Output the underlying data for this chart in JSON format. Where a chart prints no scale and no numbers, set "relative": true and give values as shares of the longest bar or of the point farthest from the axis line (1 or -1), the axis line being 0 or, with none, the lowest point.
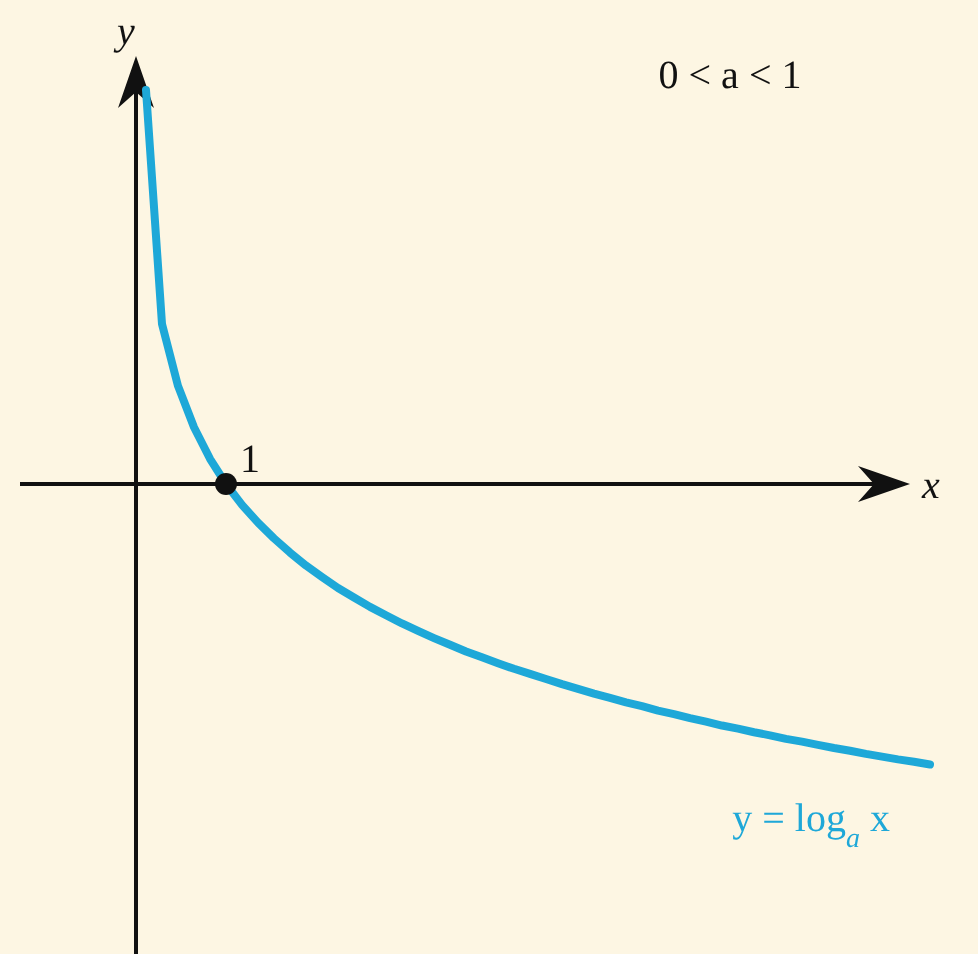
{
  "chart_data": {
    "type": "line",
    "relative": true,
    "xlabel": "x",
    "ylabel": "y",
    "annotations": [
      "0 < a < 1",
      "1"
    ],
    "categories": [
      null,
      null,
      null,
      null,
      null,
      null,
      null,
      null,
      null,
      null,
      null,
      null,
      null,
      null,
      null,
      null,
      null,
      null,
      null,
      null,
      null,
      null,
      null,
      null,
      null,
      null,
      null,
      null,
      null,
      null,
      null,
      null,
      null,
      null,
      null,
      null,
      null,
      null,
      null,
      null,
      null,
      null,
      null,
      null,
      null,
      null,
      null,
      null,
      null,
      null
    ],
    "series": [
      {
        "name": "y = log$_{a}$ x",
        "color": "#1ea8d8",
        "values": [
          1.0,
          0.406,
          0.249,
          0.144,
          0.064,
          0,
          -0.053,
          -0.098,
          -0.138,
          -0.174,
          -0.207,
          -0.236,
          -0.264,
          -0.288,
          -0.312,
          -0.333,
          -0.354,
          -0.373,
          -0.391,
          -0.408,
          -0.425,
          -0.44,
          -0.455,
          -0.469,
          -0.482,
          -0.495,
          -0.508,
          -0.52,
          -0.532,
          -0.543,
          -0.554,
          -0.564,
          -0.575,
          -0.584,
          -0.594,
          -0.603,
          -0.613,
          -0.621,
          -0.63,
          -0.638,
          -0.647,
          -0.654,
          -0.662,
          -0.67,
          -0.677,
          -0.685,
          -0.692,
          -0.699,
          -0.705,
          -0.712
        ]
      }
    ]
  }
}
